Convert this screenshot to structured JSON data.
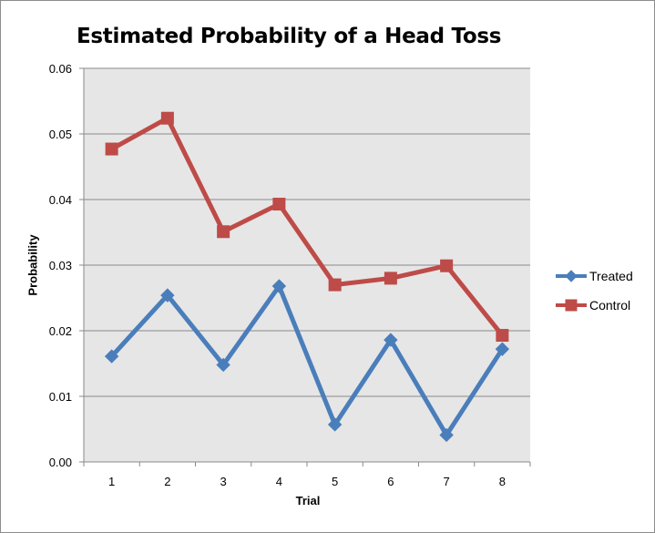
{
  "chart_data": {
    "type": "line",
    "title": "Estimated Probability of a Head Toss",
    "xlabel": "Trial",
    "ylabel": "Probability",
    "categories": [
      "1",
      "2",
      "3",
      "4",
      "5",
      "6",
      "7",
      "8"
    ],
    "ylim": [
      0,
      0.06
    ],
    "yticks": [
      "0.00",
      "0.01",
      "0.02",
      "0.03",
      "0.04",
      "0.05",
      "0.06"
    ],
    "grid": true,
    "legend_position": "right",
    "plot_background": "#e6e6e6",
    "series": [
      {
        "name": "Treated",
        "color": "#4a7ebb",
        "marker": "diamond",
        "values": [
          0.0161,
          0.0254,
          0.0148,
          0.0268,
          0.0057,
          0.0186,
          0.0041,
          0.0172
        ]
      },
      {
        "name": "Control",
        "color": "#be4b48",
        "marker": "square",
        "values": [
          0.0477,
          0.0524,
          0.0351,
          0.0393,
          0.027,
          0.028,
          0.0299,
          0.0193
        ]
      }
    ]
  }
}
